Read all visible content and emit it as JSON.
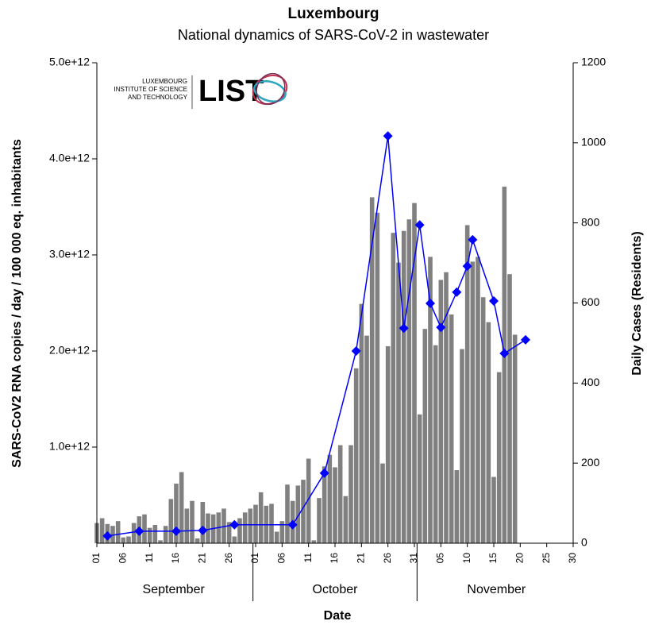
{
  "logo": {
    "lines": [
      "LUXEMBOURG",
      "INSTITUTE OF SCIENCE",
      "AND TECHNOLOGY"
    ],
    "name": "LIST"
  },
  "chart_data": {
    "type": "bar-line",
    "title": "Luxembourg",
    "subtitle": "National dynamics of SARS-CoV-2 in wastewater",
    "x_label": "Date",
    "y_label": "SARS-CoV2 RNA copies / day  / 100 000 eq. inhabitants",
    "y2_label": "Daily Cases (Residents)",
    "months": [
      "September",
      "October",
      "November"
    ],
    "categories": [
      "01",
      null,
      null,
      null,
      null,
      "06",
      null,
      null,
      null,
      null,
      "11",
      null,
      null,
      null,
      null,
      "16",
      null,
      null,
      null,
      null,
      "21",
      null,
      null,
      null,
      null,
      "26",
      null,
      null,
      null,
      null,
      "01",
      null,
      null,
      null,
      null,
      "06",
      null,
      null,
      null,
      null,
      "11",
      null,
      null,
      null,
      null,
      "16",
      null,
      null,
      null,
      null,
      "21",
      null,
      null,
      null,
      null,
      "26",
      null,
      null,
      null,
      null,
      "31",
      null,
      null,
      null,
      null,
      "05",
      null,
      null,
      null,
      null,
      "10",
      null,
      null,
      null,
      null,
      "15",
      null,
      null,
      null,
      null,
      "20",
      null,
      null,
      null,
      null,
      "25",
      null,
      null,
      null,
      null,
      "30"
    ],
    "ylim": [
      0,
      5000000000000.0
    ],
    "yticks": [
      {
        "value": 1000000000000.0,
        "label": "1.0e+12"
      },
      {
        "value": 2000000000000.0,
        "label": "2.0e+12"
      },
      {
        "value": 3000000000000.0,
        "label": "3.0e+12"
      },
      {
        "value": 4000000000000.0,
        "label": "4.0e+12"
      },
      {
        "value": 5000000000000.0,
        "label": "5.0e+12"
      }
    ],
    "y2lim": [
      0,
      1200
    ],
    "y2ticks": [
      0,
      200,
      400,
      600,
      800,
      1000,
      1200
    ],
    "series": [
      {
        "name": "SARS-CoV2 RNA",
        "color": "#808080",
        "values": [
          210000000000.0,
          260000000000.0,
          200000000000.0,
          180000000000.0,
          230000000000.0,
          60000000000.0,
          70000000000.0,
          210000000000.0,
          280000000000.0,
          300000000000.0,
          160000000000.0,
          190000000000.0,
          30000000000.0,
          180000000000.0,
          460000000000.0,
          620000000000.0,
          740000000000.0,
          360000000000.0,
          440000000000.0,
          50000000000.0,
          430000000000.0,
          310000000000.0,
          300000000000.0,
          320000000000.0,
          360000000000.0,
          220000000000.0,
          70000000000.0,
          260000000000.0,
          320000000000.0,
          360000000000.0,
          400000000000.0,
          530000000000.0,
          390000000000.0,
          410000000000.0,
          120000000000.0,
          230000000000.0,
          610000000000.0,
          440000000000.0,
          600000000000.0,
          660000000000.0,
          880000000000.0,
          30000000000.0,
          470000000000.0,
          800000000000.0,
          920000000000.0,
          790000000000.0,
          1020000000000.0,
          490000000000.0,
          1020000000000.0,
          1820000000000.0,
          2490000000000.0,
          2160000000000.0,
          3600000000000.0,
          3440000000000.0,
          830000000000.0,
          2050000000000.0,
          3230000000000.0,
          2920000000000.0,
          3250000000000.0,
          3370000000000.0,
          3540000000000.0,
          1340000000000.0,
          2230000000000.0,
          2980000000000.0,
          2060000000000.0,
          2740000000000.0,
          2820000000000.0,
          2380000000000.0,
          760000000000.0,
          2020000000000.0,
          3310000000000.0,
          2930000000000.0,
          2980000000000.0,
          2560000000000.0,
          2300000000000.0,
          690000000000.0,
          1780000000000.0,
          3710000000000.0,
          2800000000000.0,
          2170000000000.0,
          null,
          null,
          null,
          null,
          null,
          null,
          null,
          null,
          null,
          null,
          null
        ]
      },
      {
        "name": "Daily Cases",
        "color": "#0000ff",
        "axis": "y2",
        "x": [
          2,
          8,
          15,
          20,
          26,
          37,
          43,
          49,
          55,
          58,
          61,
          63,
          65,
          68,
          70,
          71,
          75,
          77,
          81
        ],
        "values": [
          18,
          30,
          30,
          32,
          46,
          46,
          175,
          480,
          1017,
          537,
          795,
          599,
          539,
          627,
          692,
          758,
          605,
          474,
          508
        ]
      }
    ]
  }
}
